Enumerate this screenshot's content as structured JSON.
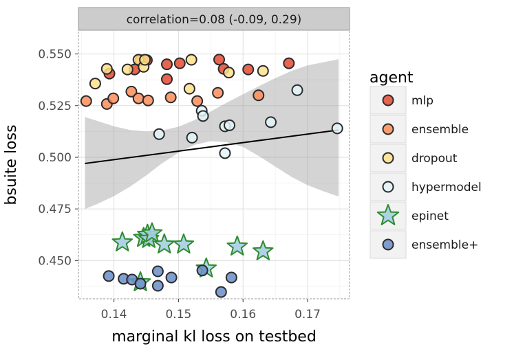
{
  "chart_data": {
    "type": "scatter",
    "facet_title": "correlation=0.08 (-0.09, 0.29)",
    "xlabel": "marginal kl loss on testbed",
    "ylabel": "bsuite loss",
    "xlim": [
      0.1345,
      0.1765
    ],
    "ylim": [
      0.4315,
      0.5615
    ],
    "xticks": [
      0.14,
      0.15,
      0.16,
      0.17
    ],
    "xtick_labels": [
      "0.14",
      "0.15",
      "0.16",
      "0.17"
    ],
    "yticks": [
      0.45,
      0.475,
      0.5,
      0.525,
      0.55
    ],
    "ytick_labels": [
      "0.450",
      "0.475",
      "0.500",
      "0.525",
      "0.550"
    ],
    "legend_title": "agent",
    "legend_position": "right",
    "series": [
      {
        "name": "mlp",
        "marker": "circle",
        "color": "#e34a33",
        "points": [
          [
            0.1393,
            0.5405
          ],
          [
            0.1432,
            0.5425
          ],
          [
            0.1441,
            0.547
          ],
          [
            0.1451,
            0.547
          ],
          [
            0.1482,
            0.545
          ],
          [
            0.1482,
            0.5378
          ],
          [
            0.1502,
            0.5455
          ],
          [
            0.1563,
            0.5473
          ],
          [
            0.157,
            0.5428
          ],
          [
            0.1608,
            0.5425
          ],
          [
            0.1671,
            0.5455
          ]
        ]
      },
      {
        "name": "ensemble",
        "marker": "circle",
        "color": "#fc8d59",
        "points": [
          [
            0.1357,
            0.5272
          ],
          [
            0.1389,
            0.5258
          ],
          [
            0.1399,
            0.5285
          ],
          [
            0.1427,
            0.5318
          ],
          [
            0.1438,
            0.5285
          ],
          [
            0.1453,
            0.5275
          ],
          [
            0.1488,
            0.529
          ],
          [
            0.1529,
            0.5272
          ],
          [
            0.1561,
            0.5312
          ],
          [
            0.1624,
            0.53
          ]
        ]
      },
      {
        "name": "dropout",
        "marker": "circle",
        "color": "#fee08b",
        "points": [
          [
            0.1389,
            0.5428
          ],
          [
            0.1371,
            0.5357
          ],
          [
            0.1421,
            0.5425
          ],
          [
            0.1438,
            0.5472
          ],
          [
            0.1446,
            0.5438
          ],
          [
            0.1448,
            0.5472
          ],
          [
            0.1517,
            0.5332
          ],
          [
            0.152,
            0.5472
          ],
          [
            0.1578,
            0.541
          ],
          [
            0.1631,
            0.5418
          ]
        ]
      },
      {
        "name": "hypermodel",
        "marker": "circle",
        "color": "#e0f3f8",
        "points": [
          [
            0.147,
            0.5112
          ],
          [
            0.1521,
            0.5095
          ],
          [
            0.1536,
            0.5225
          ],
          [
            0.1538,
            0.52
          ],
          [
            0.1572,
            0.515
          ],
          [
            0.1572,
            0.502
          ],
          [
            0.1579,
            0.5155
          ],
          [
            0.1643,
            0.517
          ],
          [
            0.1684,
            0.5325
          ],
          [
            0.1746,
            0.514
          ]
        ]
      },
      {
        "name": "epinet",
        "marker": "star",
        "color": "#a6cee3",
        "points": [
          [
            0.1413,
            0.4588
          ],
          [
            0.1441,
            0.4395
          ],
          [
            0.1446,
            0.461
          ],
          [
            0.1452,
            0.4625
          ],
          [
            0.1454,
            0.4605
          ],
          [
            0.1459,
            0.4632
          ],
          [
            0.1478,
            0.4578
          ],
          [
            0.1508,
            0.4578
          ],
          [
            0.1543,
            0.4462
          ],
          [
            0.1591,
            0.4568
          ],
          [
            0.1631,
            0.4545
          ]
        ]
      },
      {
        "name": "ensemble+",
        "marker": "circle",
        "color": "#6a8ec8",
        "points": [
          [
            0.1392,
            0.4425
          ],
          [
            0.1415,
            0.4412
          ],
          [
            0.1428,
            0.4408
          ],
          [
            0.1441,
            0.4388
          ],
          [
            0.1468,
            0.4448
          ],
          [
            0.1468,
            0.4378
          ],
          [
            0.1489,
            0.4418
          ],
          [
            0.1537,
            0.4452
          ],
          [
            0.1566,
            0.4348
          ],
          [
            0.1582,
            0.4418
          ]
        ]
      }
    ],
    "trend_line": {
      "x": [
        0.1355,
        0.1748
      ],
      "y": [
        0.497,
        0.5132
      ]
    },
    "confidence_band": {
      "x": [
        0.1355,
        0.1375,
        0.14,
        0.1425,
        0.145,
        0.1475,
        0.15,
        0.1525,
        0.155,
        0.1575,
        0.16,
        0.1625,
        0.165,
        0.1675,
        0.17,
        0.1725,
        0.1748
      ],
      "upper": [
        0.5195,
        0.5175,
        0.515,
        0.5132,
        0.5125,
        0.513,
        0.5148,
        0.518,
        0.5222,
        0.5265,
        0.5305,
        0.5345,
        0.5383,
        0.5418,
        0.5445,
        0.546,
        0.5475
      ],
      "lower": [
        0.475,
        0.4775,
        0.4812,
        0.4858,
        0.4912,
        0.4972,
        0.5022,
        0.506,
        0.5078,
        0.5073,
        0.505,
        0.5005,
        0.4955,
        0.4905,
        0.4865,
        0.4835,
        0.481
      ]
    }
  }
}
